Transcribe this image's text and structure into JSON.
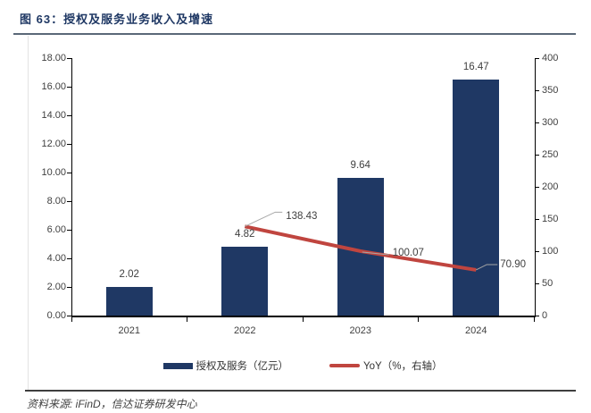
{
  "header": {
    "title": "图 63：授权及服务业务收入及增速"
  },
  "footer": {
    "source": "资料来源: iFinD，信达证券研发中心"
  },
  "chart_data": {
    "type": "bar",
    "title": "图 63：授权及服务业务收入及增速",
    "categories": [
      "2021",
      "2022",
      "2023",
      "2024"
    ],
    "series": [
      {
        "name": "授权及服务（亿元）",
        "type": "bar",
        "axis": "left",
        "values": [
          2.02,
          4.82,
          9.64,
          16.47
        ],
        "value_labels": [
          "2.02",
          "4.82",
          "9.64",
          "16.47"
        ]
      },
      {
        "name": "YoY（%，右轴）",
        "type": "line",
        "axis": "right",
        "categories": [
          "2022",
          "2023",
          "2024"
        ],
        "values": [
          138.43,
          100.07,
          70.9
        ],
        "value_labels": [
          "138.43",
          "100.07",
          "70.90"
        ]
      }
    ],
    "left_axis": {
      "min": 0,
      "max": 18,
      "step": 2,
      "tick_labels": [
        "0.00",
        "2.00",
        "4.00",
        "6.00",
        "8.00",
        "10.00",
        "12.00",
        "14.00",
        "16.00",
        "18.00"
      ]
    },
    "right_axis": {
      "min": 0,
      "max": 400,
      "step": 50,
      "tick_labels": [
        "0",
        "50",
        "100",
        "150",
        "200",
        "250",
        "300",
        "350",
        "400"
      ]
    },
    "legend": [
      {
        "label": "授权及服务（亿元）",
        "type": "bar"
      },
      {
        "label": "YoY（%，右轴）",
        "type": "line"
      }
    ],
    "legend_position": "bottom",
    "grid": false
  },
  "colors": {
    "bar": "#1F3864",
    "line": "#C0453F",
    "title": "#1F3864",
    "leader": "#A6A6A6",
    "axis_text": "#404040"
  }
}
